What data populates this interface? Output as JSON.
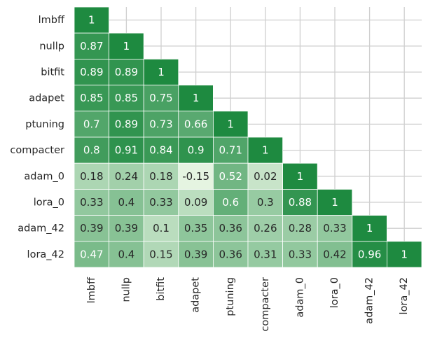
{
  "chart_data": {
    "type": "heatmap",
    "subtype": "lower-triangular correlation matrix",
    "labels": [
      "lmbff",
      "nullp",
      "bitfit",
      "adapet",
      "ptuning",
      "compacter",
      "adam_0",
      "lora_0",
      "adam_42",
      "lora_42"
    ],
    "values": [
      [
        "1"
      ],
      [
        "0.87",
        "1"
      ],
      [
        "0.89",
        "0.89",
        "1"
      ],
      [
        "0.85",
        "0.85",
        "0.75",
        "1"
      ],
      [
        "0.7",
        "0.89",
        "0.73",
        "0.66",
        "1"
      ],
      [
        "0.8",
        "0.91",
        "0.84",
        "0.9",
        "0.71",
        "1"
      ],
      [
        "0.18",
        "0.24",
        "0.18",
        "-0.15",
        "0.52",
        "0.02",
        "1"
      ],
      [
        "0.33",
        "0.4",
        "0.33",
        "0.09",
        "0.6",
        "0.3",
        "0.88",
        "1"
      ],
      [
        "0.39",
        "0.39",
        "0.1",
        "0.35",
        "0.36",
        "0.26",
        "0.28",
        "0.33",
        "1"
      ],
      [
        "0.47",
        "0.4",
        "0.15",
        "0.39",
        "0.36",
        "0.31",
        "0.33",
        "0.42",
        "0.96",
        "1"
      ]
    ],
    "colormap": "Greens",
    "color_low": "#e5f4e1",
    "color_high": "#1e8a40",
    "value_range": [
      -0.15,
      1
    ],
    "grid": true,
    "grid_color": "#cfcfcf",
    "annotation_light_color": "#ffffff",
    "annotation_dark_color": "#262626",
    "colorbar": false
  }
}
